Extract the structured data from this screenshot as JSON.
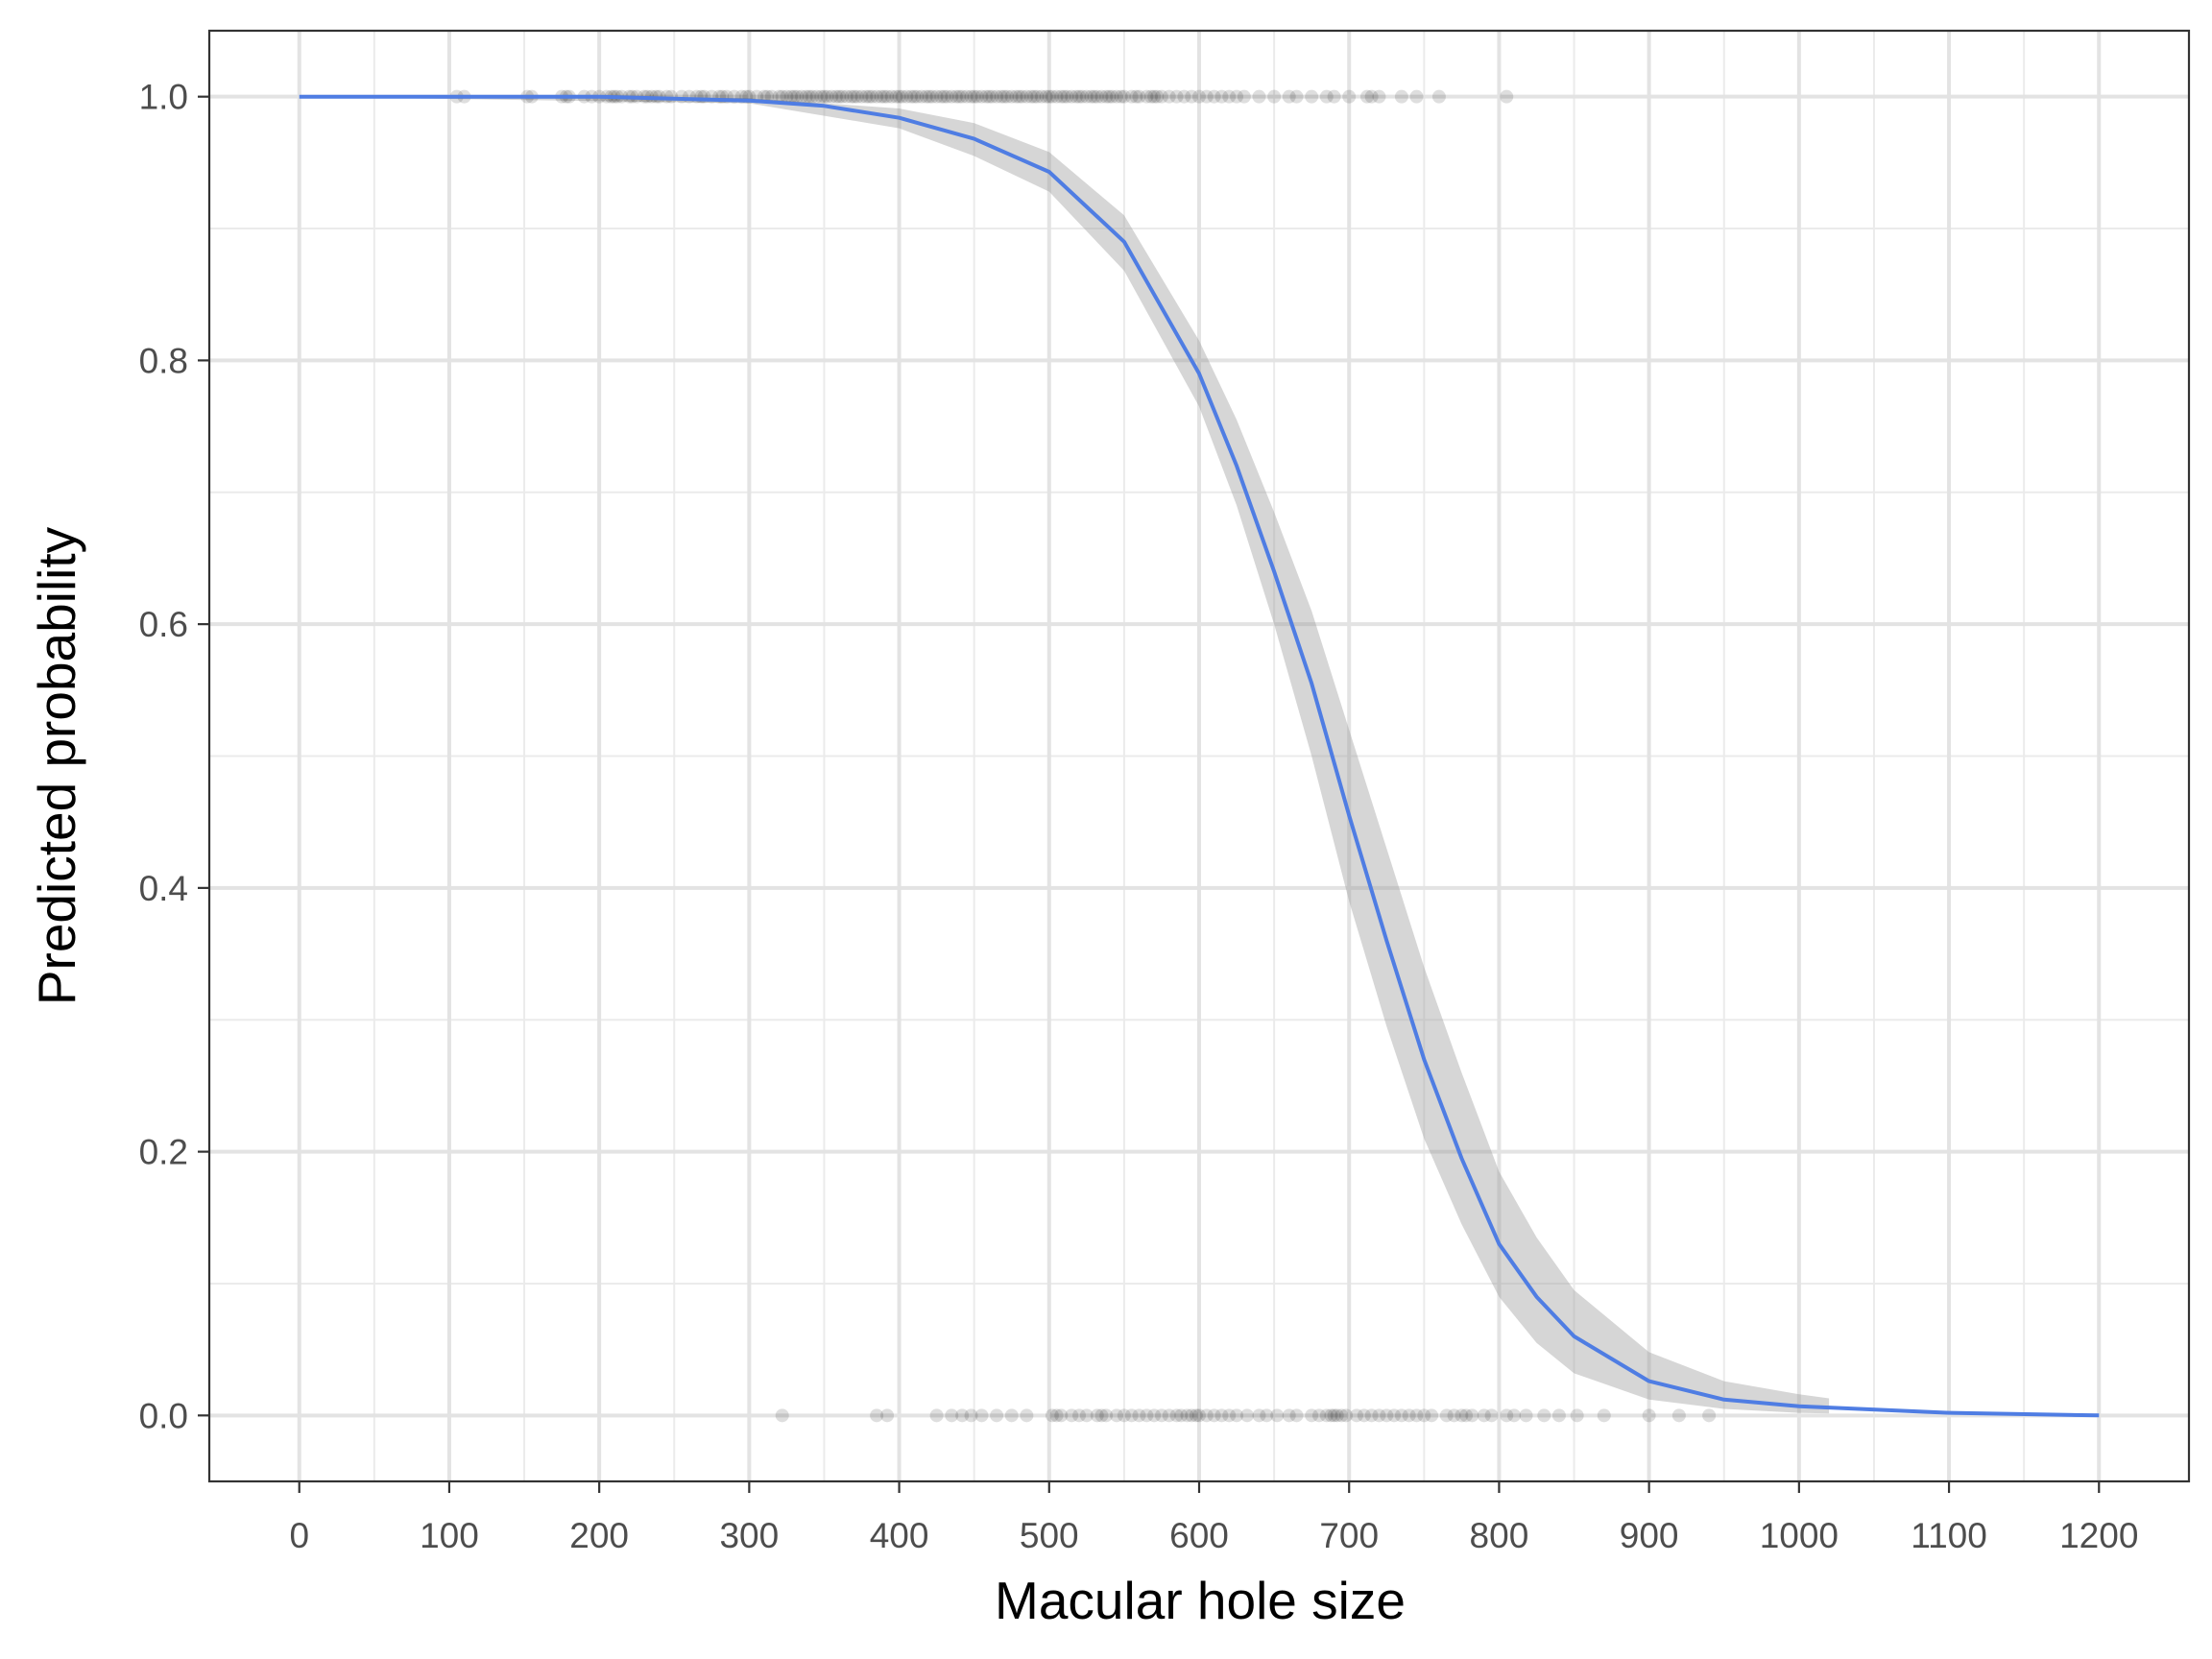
{
  "chart_data": {
    "type": "line",
    "xlabel": "Macular hole size",
    "ylabel": "Predicted probability",
    "xlim": [
      -60,
      1260
    ],
    "ylim": [
      -0.05,
      1.05
    ],
    "x_ticks": [
      0,
      100,
      200,
      300,
      400,
      500,
      600,
      700,
      800,
      900,
      1000,
      1100,
      1200
    ],
    "x_tick_labels": [
      "0",
      "100",
      "200",
      "300",
      "400",
      "500",
      "600",
      "700",
      "800",
      "900",
      "1000",
      "1100",
      "1200"
    ],
    "y_ticks": [
      0.0,
      0.2,
      0.4,
      0.6,
      0.8,
      1.0
    ],
    "y_tick_labels": [
      "0.0",
      "0.2",
      "0.4",
      "0.6",
      "0.8",
      "1.0"
    ],
    "grid": true,
    "fitted_curve": {
      "color": "#4f7de3",
      "points": [
        [
          0,
          1.0
        ],
        [
          100,
          1.0
        ],
        [
          200,
          1.0
        ],
        [
          300,
          0.997
        ],
        [
          350,
          0.993
        ],
        [
          400,
          0.984
        ],
        [
          450,
          0.968
        ],
        [
          500,
          0.943
        ],
        [
          550,
          0.89
        ],
        [
          600,
          0.79
        ],
        [
          625,
          0.72
        ],
        [
          650,
          0.64
        ],
        [
          675,
          0.555
        ],
        [
          700,
          0.455
        ],
        [
          725,
          0.36
        ],
        [
          750,
          0.27
        ],
        [
          775,
          0.195
        ],
        [
          800,
          0.13
        ],
        [
          825,
          0.09
        ],
        [
          850,
          0.06
        ],
        [
          900,
          0.026
        ],
        [
          950,
          0.012
        ],
        [
          1000,
          0.007
        ],
        [
          1020,
          0.006
        ],
        [
          1100,
          0.002
        ],
        [
          1200,
          0.0
        ]
      ]
    },
    "confidence_band": {
      "color": "#999999",
      "x": [
        0,
        300,
        400,
        450,
        500,
        550,
        600,
        625,
        650,
        675,
        700,
        725,
        750,
        775,
        800,
        825,
        850,
        900,
        950,
        1000,
        1020
      ],
      "lower": [
        1.0,
        0.995,
        0.976,
        0.955,
        0.928,
        0.868,
        0.765,
        0.69,
        0.6,
        0.5,
        0.39,
        0.295,
        0.21,
        0.145,
        0.09,
        0.055,
        0.032,
        0.012,
        0.005,
        0.002,
        0.0015
      ],
      "upper": [
        1.0,
        0.999,
        0.991,
        0.98,
        0.958,
        0.91,
        0.815,
        0.755,
        0.685,
        0.61,
        0.52,
        0.43,
        0.34,
        0.26,
        0.185,
        0.135,
        0.095,
        0.048,
        0.026,
        0.016,
        0.013
      ]
    },
    "observed_points": {
      "color": "#000000",
      "y1_x": [
        105,
        110,
        152,
        155,
        175,
        178,
        180,
        190,
        195,
        200,
        205,
        208,
        210,
        212,
        215,
        220,
        222,
        225,
        230,
        232,
        235,
        238,
        240,
        245,
        248,
        255,
        260,
        265,
        268,
        270,
        275,
        280,
        282,
        285,
        290,
        295,
        298,
        300,
        305,
        310,
        312,
        315,
        320,
        322,
        325,
        328,
        330,
        332,
        335,
        338,
        340,
        342,
        345,
        348,
        350,
        352,
        355,
        358,
        360,
        362,
        365,
        368,
        370,
        372,
        375,
        378,
        380,
        382,
        385,
        388,
        390,
        392,
        395,
        398,
        400,
        402,
        405,
        408,
        410,
        412,
        415,
        418,
        420,
        422,
        425,
        428,
        430,
        432,
        435,
        438,
        440,
        442,
        445,
        448,
        450,
        452,
        455,
        458,
        460,
        462,
        465,
        468,
        470,
        472,
        475,
        478,
        480,
        482,
        485,
        488,
        490,
        492,
        495,
        498,
        500,
        502,
        505,
        508,
        510,
        512,
        515,
        518,
        520,
        522,
        525,
        528,
        530,
        532,
        535,
        538,
        540,
        542,
        545,
        548,
        550,
        555,
        558,
        560,
        565,
        568,
        570,
        572,
        575,
        580,
        585,
        590,
        595,
        600,
        605,
        610,
        615,
        620,
        625,
        630,
        640,
        650,
        660,
        665,
        675,
        685,
        690,
        700,
        712,
        715,
        720,
        735,
        745,
        760,
        805
      ],
      "y0_x": [
        322,
        385,
        392,
        425,
        435,
        442,
        448,
        455,
        465,
        475,
        485,
        502,
        505,
        508,
        515,
        520,
        525,
        532,
        535,
        538,
        545,
        550,
        555,
        560,
        565,
        570,
        575,
        580,
        585,
        588,
        592,
        595,
        598,
        600,
        605,
        610,
        615,
        620,
        625,
        632,
        640,
        645,
        652,
        660,
        665,
        675,
        680,
        685,
        688,
        690,
        692,
        695,
        698,
        705,
        710,
        715,
        720,
        725,
        730,
        735,
        740,
        745,
        750,
        755,
        765,
        770,
        775,
        778,
        782,
        790,
        795,
        805,
        810,
        818,
        830,
        840,
        852,
        870,
        900,
        920,
        940
      ]
    }
  }
}
